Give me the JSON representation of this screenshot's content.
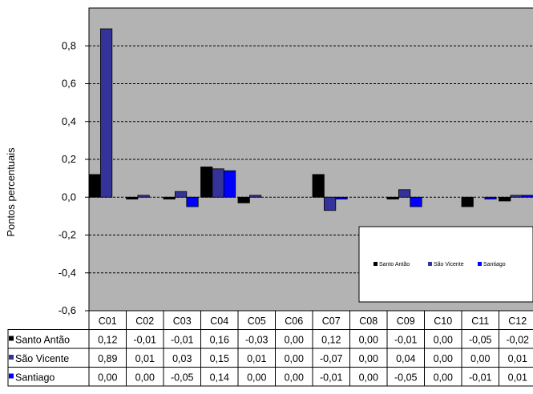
{
  "chart_data": {
    "type": "bar",
    "ylabel": "Pontos percentuais",
    "ylim": [
      -0.6,
      1.0
    ],
    "y_ticks": [
      "0,8",
      "0,6",
      "0,4",
      "0,2",
      "0,0",
      "-0,2",
      "-0,4",
      "-0,6"
    ],
    "y_tick_values": [
      0.8,
      0.6,
      0.4,
      0.2,
      0.0,
      -0.2,
      -0.4,
      -0.6
    ],
    "categories": [
      "C01",
      "C02",
      "C03",
      "C04",
      "C05",
      "C06",
      "C07",
      "C08",
      "C09",
      "C10",
      "C11",
      "C12"
    ],
    "grid": "dashed horizontal",
    "legend_position": "lower-right",
    "plot_background": "#b3b3b3",
    "series": [
      {
        "name": "Santo Antão",
        "color": "#000000",
        "values": [
          0.12,
          -0.01,
          -0.01,
          0.16,
          -0.03,
          0.0,
          0.12,
          0.0,
          -0.01,
          0.0,
          -0.05,
          -0.02
        ],
        "labels": [
          "0,12",
          "-0,01",
          "-0,01",
          "0,16",
          "-0,03",
          "0,00",
          "0,12",
          "0,00",
          "-0,01",
          "0,00",
          "-0,05",
          "-0,02"
        ]
      },
      {
        "name": "São Vicente",
        "color": "#333399",
        "values": [
          0.89,
          0.01,
          0.03,
          0.15,
          0.01,
          0.0,
          -0.07,
          0.0,
          0.04,
          0.0,
          0.0,
          0.01
        ],
        "labels": [
          "0,89",
          "0,01",
          "0,03",
          "0,15",
          "0,01",
          "0,00",
          "-0,07",
          "0,00",
          "0,04",
          "0,00",
          "0,00",
          "0,01"
        ]
      },
      {
        "name": "Santiago",
        "color": "#0000ff",
        "values": [
          0.0,
          0.0,
          -0.05,
          0.14,
          0.0,
          0.0,
          -0.01,
          0.0,
          -0.05,
          0.0,
          -0.01,
          0.01
        ],
        "labels": [
          "0,00",
          "0,00",
          "-0,05",
          "0,14",
          "0,00",
          "0,00",
          "-0,01",
          "0,00",
          "-0,05",
          "0,00",
          "-0,01",
          "0,01"
        ]
      }
    ]
  }
}
